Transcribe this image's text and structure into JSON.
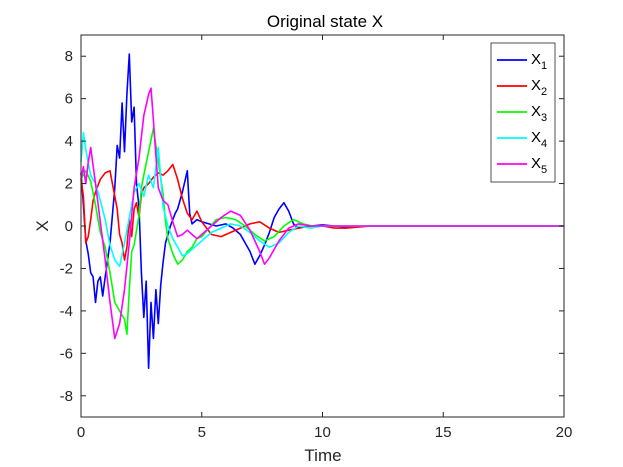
{
  "chart_data": {
    "type": "line",
    "title": "Original state X",
    "xlabel": "Time",
    "ylabel": "X",
    "xlim": [
      0,
      20
    ],
    "ylim": [
      -9,
      9
    ],
    "xticks": [
      0,
      5,
      10,
      15,
      20
    ],
    "yticks": [
      -8,
      -6,
      -4,
      -2,
      0,
      2,
      4,
      6,
      8
    ],
    "xtick_labels": [
      "0",
      "5",
      "10",
      "15",
      "20"
    ],
    "ytick_labels": [
      "-8",
      "-6",
      "-4",
      "-2",
      "0",
      "2",
      "4",
      "6",
      "8"
    ],
    "grid": false,
    "legend_position": "top-right",
    "series": [
      {
        "name": "X1",
        "base": "X",
        "sub": "1",
        "color": "#0000ff",
        "x": [
          0,
          0.1,
          0.2,
          0.3,
          0.4,
          0.5,
          0.6,
          0.7,
          0.8,
          0.9,
          1.0,
          1.1,
          1.2,
          1.3,
          1.4,
          1.5,
          1.6,
          1.7,
          1.8,
          1.9,
          2.0,
          2.1,
          2.2,
          2.3,
          2.4,
          2.5,
          2.6,
          2.7,
          2.8,
          2.9,
          3.0,
          3.1,
          3.2,
          3.3,
          3.4,
          3.5,
          3.7,
          3.9,
          4.0,
          4.2,
          4.4,
          4.5,
          4.6,
          4.8,
          5.0,
          5.3,
          5.6,
          6.0,
          6.3,
          6.6,
          6.8,
          7.0,
          7.2,
          7.4,
          7.6,
          7.8,
          8.0,
          8.2,
          8.4,
          8.6,
          8.8,
          9.0,
          9.5,
          10.0,
          10.5,
          11.0,
          12.0,
          13.0,
          14.0,
          15.0,
          16.0,
          17.0,
          18.0,
          19.0,
          20.0
        ],
        "values": [
          2.5,
          1.0,
          -0.7,
          -1.3,
          -2.2,
          -2.4,
          -3.6,
          -2.6,
          -2.4,
          -3.3,
          -2.4,
          -1.6,
          -0.8,
          0.5,
          1.8,
          3.8,
          3.2,
          5.8,
          3.5,
          6.2,
          8.1,
          4.9,
          5.6,
          2.0,
          0.9,
          -2.2,
          -4.3,
          -2.6,
          -6.7,
          -3.6,
          -5.3,
          -3.0,
          -4.6,
          -2.8,
          -1.7,
          -0.8,
          0.0,
          0.6,
          0.8,
          1.6,
          2.6,
          0.6,
          0.1,
          0.3,
          0.2,
          0.1,
          0.0,
          0.1,
          -0.1,
          -0.4,
          -0.8,
          -1.2,
          -1.8,
          -1.4,
          -0.9,
          -0.3,
          0.4,
          0.8,
          1.1,
          0.7,
          0.1,
          -0.1,
          0.0,
          0.05,
          0.0,
          -0.05,
          0.0,
          0.0,
          0.0,
          0.0,
          0.0,
          0.0,
          0.0,
          0.0,
          0.0
        ]
      },
      {
        "name": "X2",
        "base": "X",
        "sub": "2",
        "color": "#ff0000",
        "x": [
          0,
          0.1,
          0.2,
          0.3,
          0.4,
          0.5,
          0.6,
          0.8,
          1.0,
          1.2,
          1.3,
          1.4,
          1.5,
          1.6,
          1.7,
          1.8,
          1.9,
          2.0,
          2.1,
          2.2,
          2.3,
          2.4,
          2.5,
          2.6,
          2.8,
          3.0,
          3.2,
          3.4,
          3.6,
          3.8,
          4.0,
          4.2,
          4.4,
          4.6,
          4.8,
          5.0,
          5.4,
          5.8,
          6.2,
          6.6,
          7.0,
          7.4,
          7.8,
          8.2,
          8.6,
          9.0,
          9.5,
          10.0,
          10.5,
          11.0,
          12.0,
          13.0,
          14.0,
          15.0,
          16.0,
          17.0,
          18.0,
          19.0,
          20.0
        ],
        "values": [
          2.2,
          1.4,
          -0.8,
          -0.5,
          0.3,
          1.2,
          1.6,
          2.2,
          2.5,
          2.6,
          2.0,
          1.4,
          0.8,
          -0.4,
          -0.8,
          -1.6,
          -1.0,
          0.3,
          -0.5,
          0.8,
          1.1,
          0.4,
          1.5,
          1.8,
          2.0,
          2.3,
          2.5,
          2.4,
          2.6,
          2.9,
          2.2,
          1.3,
          0.6,
          0.3,
          0.7,
          0.2,
          -0.4,
          -0.5,
          -0.3,
          -0.1,
          0.1,
          0.2,
          -0.1,
          -0.3,
          -0.2,
          -0.1,
          0.0,
          0.0,
          -0.1,
          -0.1,
          0.0,
          0.0,
          0.0,
          0.0,
          0.0,
          0.0,
          0.0,
          0.0,
          0.0
        ]
      },
      {
        "name": "X3",
        "base": "X",
        "sub": "3",
        "color": "#00ff00",
        "x": [
          0,
          0.2,
          0.4,
          0.6,
          0.8,
          1.0,
          1.2,
          1.4,
          1.6,
          1.8,
          1.9,
          2.0,
          2.1,
          2.2,
          2.4,
          2.5,
          2.6,
          2.8,
          3.0,
          3.2,
          3.4,
          3.5,
          3.6,
          3.8,
          4.0,
          4.2,
          4.4,
          4.6,
          4.8,
          5.0,
          5.3,
          5.6,
          6.0,
          6.4,
          6.8,
          7.2,
          7.6,
          8.0,
          8.4,
          8.8,
          9.2,
          9.6,
          10.0,
          10.5,
          11.0,
          12.0,
          13.0,
          14.0,
          15.0,
          16.0,
          17.0,
          18.0,
          19.0,
          20.0
        ],
        "values": [
          2.2,
          2.6,
          2.1,
          1.0,
          -0.3,
          -1.0,
          -2.2,
          -3.6,
          -4.0,
          -4.4,
          -5.1,
          -3.0,
          -1.2,
          -0.9,
          0.5,
          1.8,
          2.4,
          3.5,
          4.6,
          3.0,
          1.5,
          0.2,
          -0.6,
          -1.3,
          -1.8,
          -1.6,
          -1.2,
          -1.0,
          -0.6,
          -0.5,
          -0.1,
          0.3,
          0.4,
          0.3,
          0.0,
          -0.4,
          -0.7,
          -0.5,
          0.0,
          0.3,
          0.1,
          0.0,
          0.0,
          0.0,
          0.0,
          0.0,
          0.0,
          0.0,
          0.0,
          0.0,
          0.0,
          0.0,
          0.0,
          0.0
        ]
      },
      {
        "name": "X4",
        "base": "X",
        "sub": "4",
        "color": "#00ffff",
        "x": [
          0,
          0.1,
          0.2,
          0.3,
          0.4,
          0.6,
          0.8,
          1.0,
          1.2,
          1.4,
          1.6,
          1.8,
          2.0,
          2.2,
          2.4,
          2.6,
          2.8,
          3.0,
          3.2,
          3.4,
          3.6,
          3.8,
          4.0,
          4.2,
          4.4,
          4.6,
          4.8,
          5.0,
          5.4,
          5.8,
          6.2,
          6.6,
          7.0,
          7.4,
          7.8,
          8.2,
          8.6,
          9.0,
          9.5,
          10.0,
          10.5,
          11.0,
          12.0,
          13.0,
          14.0,
          15.0,
          16.0,
          17.0,
          18.0,
          19.0,
          20.0
        ],
        "values": [
          3.0,
          4.4,
          3.6,
          3.0,
          2.4,
          2.0,
          1.2,
          0.3,
          -0.9,
          -1.6,
          -1.9,
          -0.8,
          0.4,
          1.6,
          2.0,
          1.4,
          2.4,
          1.8,
          3.7,
          0.9,
          0.0,
          -0.6,
          -1.0,
          -1.4,
          -1.3,
          -1.1,
          -0.9,
          -0.7,
          -0.3,
          -0.1,
          0.1,
          0.0,
          -0.3,
          -0.7,
          -1.0,
          -0.8,
          -0.3,
          0.0,
          -0.1,
          0.0,
          0.0,
          0.0,
          0.0,
          0.0,
          0.0,
          0.0,
          0.0,
          0.0,
          0.0,
          0.0,
          0.0
        ]
      },
      {
        "name": "X5",
        "base": "X",
        "sub": "5",
        "color": "#ff00ff",
        "x": [
          0,
          0.1,
          0.2,
          0.3,
          0.4,
          0.6,
          0.8,
          1.0,
          1.2,
          1.4,
          1.6,
          1.8,
          2.0,
          2.2,
          2.4,
          2.6,
          2.8,
          2.9,
          3.0,
          3.1,
          3.2,
          3.4,
          3.6,
          3.8,
          4.0,
          4.2,
          4.4,
          4.6,
          4.8,
          5.0,
          5.4,
          5.8,
          6.2,
          6.6,
          7.0,
          7.4,
          7.6,
          7.8,
          8.2,
          8.6,
          9.0,
          9.5,
          10.0,
          10.5,
          11.0,
          12.0,
          13.0,
          14.0,
          15.0,
          16.0,
          17.0,
          18.0,
          19.0,
          20.0
        ],
        "values": [
          2.2,
          2.8,
          2.0,
          3.0,
          3.7,
          2.0,
          0.2,
          -1.6,
          -3.6,
          -5.3,
          -4.6,
          -3.0,
          -0.8,
          1.8,
          3.2,
          5.2,
          6.2,
          6.5,
          5.0,
          3.3,
          1.8,
          1.2,
          1.0,
          0.2,
          -0.5,
          -0.4,
          -0.2,
          -0.4,
          -0.6,
          -0.4,
          0.0,
          0.4,
          0.7,
          0.5,
          -0.2,
          -1.2,
          -1.8,
          -1.5,
          -0.7,
          -0.1,
          0.1,
          0.0,
          0.0,
          0.0,
          0.0,
          0.0,
          0.0,
          0.0,
          0.0,
          0.0,
          0.0,
          0.0,
          0.0,
          0.0
        ]
      }
    ]
  }
}
